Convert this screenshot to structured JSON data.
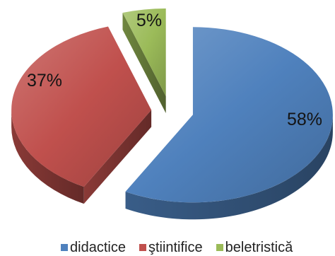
{
  "chart_data": {
    "type": "pie",
    "three_d": true,
    "exploded": true,
    "categories": [
      "didactice",
      "ştiintifice",
      "beletristică"
    ],
    "values": [
      58,
      37,
      5
    ],
    "data_labels": [
      "58%",
      "37%",
      "5%"
    ],
    "colors": [
      "#4F81BD",
      "#C0504D",
      "#9BBB59"
    ],
    "legend_position": "bottom"
  }
}
